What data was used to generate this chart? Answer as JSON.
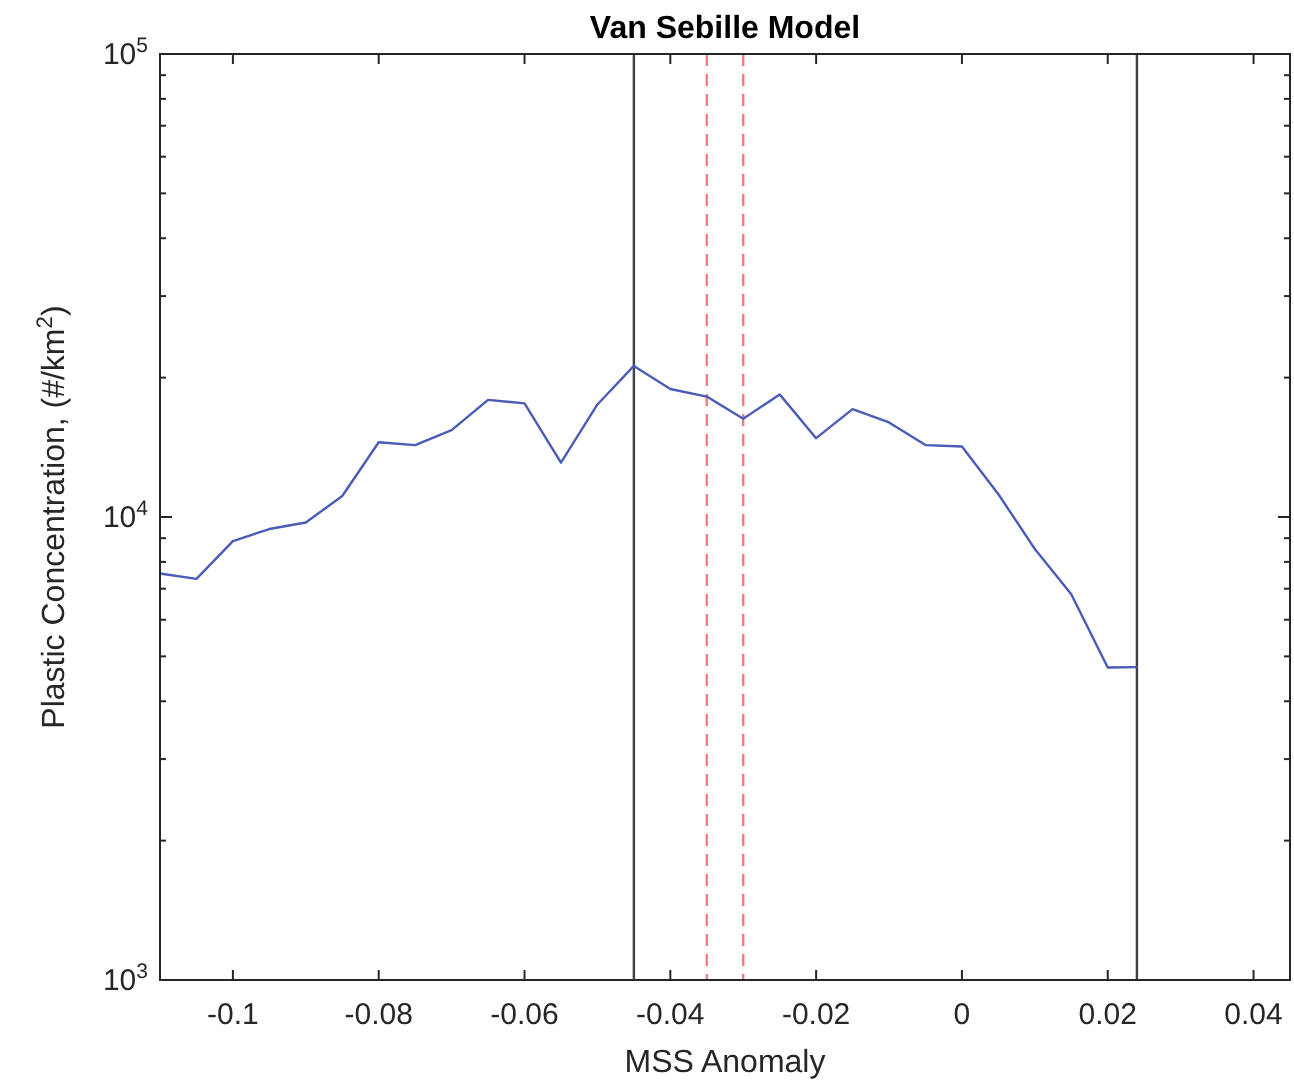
{
  "chart_data": {
    "type": "line",
    "title": "Van Sebille Model",
    "xlabel": "MSS Anomaly",
    "ylabel": "Plastic Concentration, (#/km$^{2}$)",
    "x": [
      -0.11,
      -0.105,
      -0.1,
      -0.095,
      -0.09,
      -0.085,
      -0.08,
      -0.075,
      -0.07,
      -0.065,
      -0.06,
      -0.055,
      -0.05,
      -0.045,
      -0.04,
      -0.035,
      -0.03,
      -0.025,
      -0.02,
      -0.015,
      -0.01,
      -0.005,
      0,
      0.005,
      0.01,
      0.015,
      0.02,
      0.024
    ],
    "series": [
      {
        "color": "#4a5cb8",
        "values": [
          7550,
          7350,
          8870,
          9420,
          9730,
          11100,
          14500,
          14300,
          15400,
          17900,
          17600,
          13100,
          17500,
          21200,
          18900,
          18200,
          16300,
          18400,
          14800,
          17100,
          16000,
          14300,
          14200,
          11200,
          8530,
          6810,
          4730,
          4740
        ]
      }
    ],
    "log": "y",
    "xlim": [
      -0.11,
      0.045
    ],
    "ylim": [
      1000,
      100000
    ],
    "xticks": [
      -0.1,
      -0.08,
      -0.06,
      -0.04,
      -0.02,
      0,
      0.02,
      0.04
    ],
    "yticks": [
      {
        "value": 1000,
        "label": "10$^{3}$"
      },
      {
        "value": 2000,
        "label": null
      },
      {
        "value": 3000,
        "label": null
      },
      {
        "value": 4000,
        "label": null
      },
      {
        "value": 5000,
        "label": null
      },
      {
        "value": 6000,
        "label": null
      },
      {
        "value": 7000,
        "label": null
      },
      {
        "value": 8000,
        "label": null
      },
      {
        "value": 9000,
        "label": null
      },
      {
        "value": 10000,
        "label": "10$^{4}$"
      },
      {
        "value": 20000,
        "label": null
      },
      {
        "value": 30000,
        "label": null
      },
      {
        "value": 40000,
        "label": null
      },
      {
        "value": 50000,
        "label": null
      },
      {
        "value": 60000,
        "label": null
      },
      {
        "value": 70000,
        "label": null
      },
      {
        "value": 80000,
        "label": null
      },
      {
        "value": 90000,
        "label": null
      },
      {
        "value": 100000,
        "label": "10$^{5}$"
      }
    ],
    "ref_lines": [
      {
        "axis": "x",
        "value": -0.045,
        "color": "#404040",
        "line_style": "solid"
      },
      {
        "axis": "x",
        "value": 0.024,
        "color": "#404040",
        "line_style": "solid"
      },
      {
        "axis": "x",
        "value": -0.035,
        "color": "#f08080",
        "line_style": "dashed"
      },
      {
        "axis": "x",
        "value": -0.03,
        "color": "#f08080",
        "line_style": "dashed"
      }
    ],
    "grid": false,
    "marker": "none",
    "line_style": "solid"
  }
}
